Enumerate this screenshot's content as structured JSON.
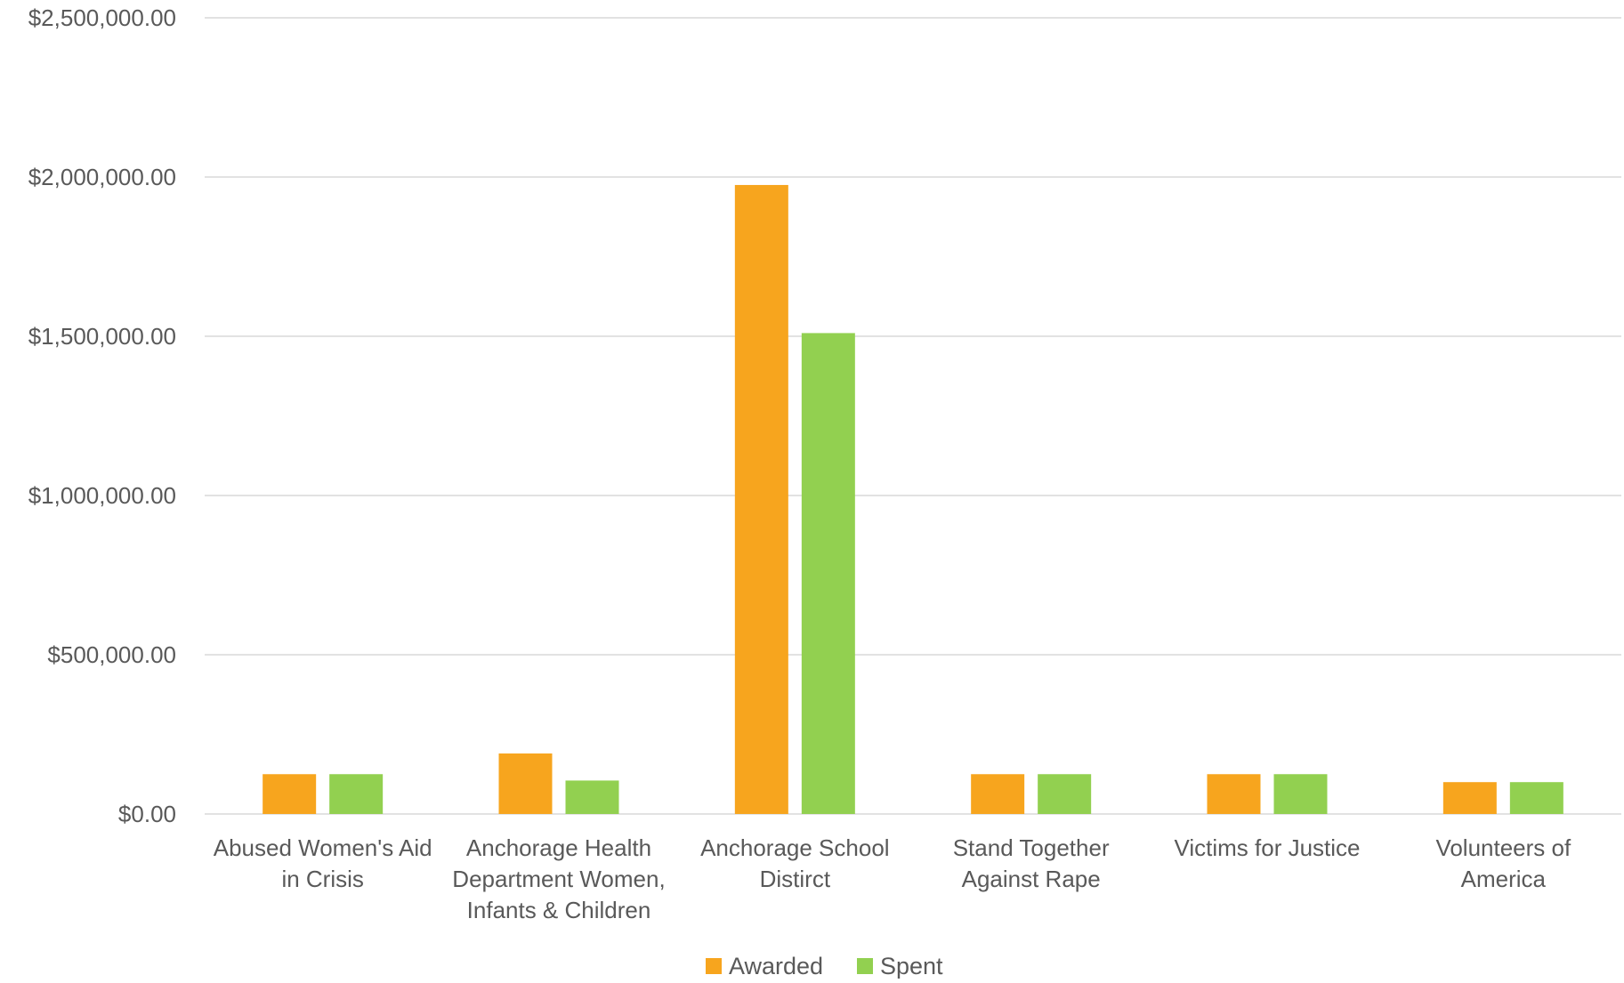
{
  "chart_data": {
    "type": "bar",
    "title": "",
    "xlabel": "",
    "ylabel": "",
    "categories": [
      [
        "Abused Women's Aid",
        "in Crisis"
      ],
      [
        "Anchorage Health",
        "Department Women,",
        "Infants & Children"
      ],
      [
        "Anchorage School",
        "Distirct"
      ],
      [
        "Stand Together",
        "Against Rape"
      ],
      [
        "Victims for Justice"
      ],
      [
        "Volunteers of",
        "America"
      ]
    ],
    "series": [
      {
        "name": "Awarded",
        "color": "#F7A51E",
        "values": [
          125000,
          190000,
          1975000,
          125000,
          125000,
          100000
        ]
      },
      {
        "name": "Spent",
        "color": "#92D050",
        "values": [
          125000,
          105000,
          1510000,
          125000,
          125000,
          100000
        ]
      }
    ],
    "ylim": [
      0,
      2500000
    ],
    "y_ticks": [
      0,
      500000,
      1000000,
      1500000,
      2000000,
      2500000
    ],
    "y_tick_labels": [
      "$0.00",
      "$500,000.00",
      "$1,000,000.00",
      "$1,500,000.00",
      "$2,000,000.00",
      "$2,500,000.00"
    ],
    "grid": true,
    "legend_position": "bottom"
  }
}
